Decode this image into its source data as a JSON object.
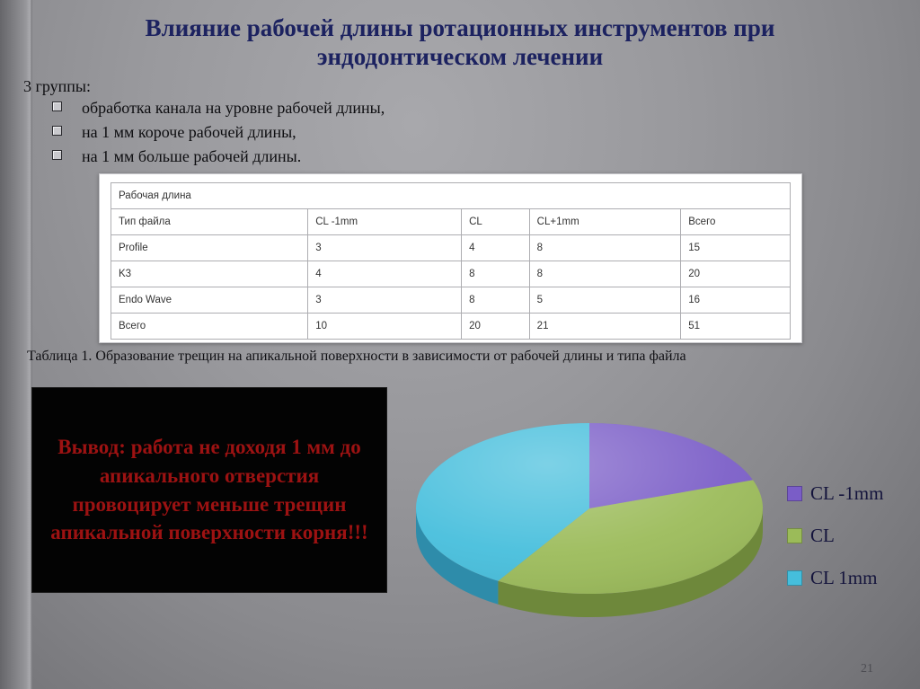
{
  "slide": {
    "title": "Влияние рабочей длины ротационных инструментов при эндодонтическом лечении",
    "groups_label": "3 группы:",
    "bullets": [
      "обработка канала на уровне рабочей длины,",
      "на 1 мм короче рабочей длины,",
      "на 1 мм больше рабочей длины."
    ],
    "table": {
      "title": "Рабочая длина",
      "columns": [
        "Тип файла",
        "CL -1mm",
        "CL",
        "CL+1mm",
        "Всего"
      ],
      "rows": [
        [
          "Profile",
          "3",
          "4",
          "8",
          "15"
        ],
        [
          "K3",
          "4",
          "8",
          "8",
          "20"
        ],
        [
          "Endo Wave",
          "3",
          "8",
          "5",
          "16"
        ],
        [
          "Всего",
          "10",
          "20",
          "21",
          "51"
        ]
      ]
    },
    "table_caption": "Таблица 1. Образование трещин на апикальной поверхности в зависимости от рабочей длины и типа файла",
    "conclusion": "Вывод: работа не доходя 1 мм до апикального отверстия провоцирует меньше трещин апикальной поверхности корня!!!",
    "page_number": "21"
  },
  "chart_data": {
    "type": "pie",
    "title": "",
    "categories": [
      "CL -1mm",
      "CL",
      "CL 1mm"
    ],
    "values": [
      10,
      20,
      21
    ],
    "percentages": [
      19.6,
      39.2,
      41.2
    ],
    "colors": [
      "#7a5dc7",
      "#9bbb59",
      "#45bedc"
    ],
    "side_colors": [
      "#55418f",
      "#6e883b",
      "#2e8caa"
    ],
    "legend_position": "right",
    "style": "3d",
    "start_angle_deg": 0,
    "direction": "clockwise"
  }
}
